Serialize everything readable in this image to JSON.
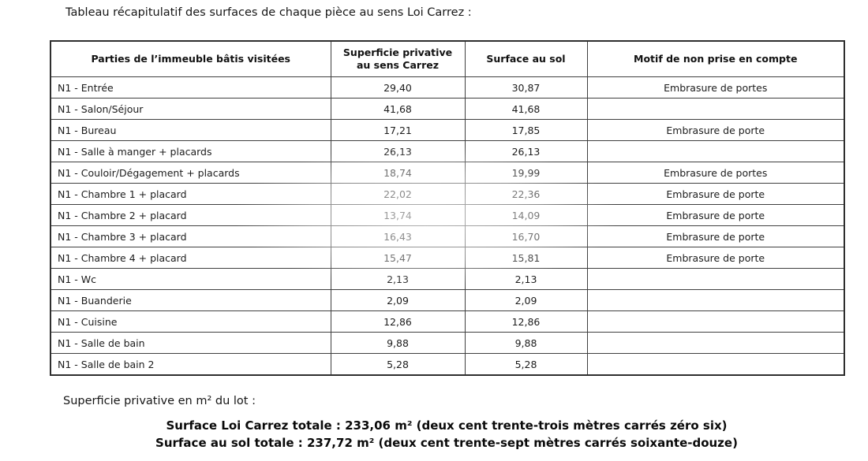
{
  "page": {
    "title": "Tableau récapitulatif des surfaces de chaque pièce au sens Loi Carrez :"
  },
  "table": {
    "headers": [
      "Parties de l’immeuble bâtis visitées",
      "Superficie privative au sens Carrez",
      "Surface au sol",
      "Motif de non prise en compte"
    ],
    "rows": [
      {
        "room": "N1 - Entrée",
        "carrez": "29,40",
        "floor": "30,87",
        "motif": "Embrasure de portes"
      },
      {
        "room": "N1 - Salon/Séjour",
        "carrez": "41,68",
        "floor": "41,68",
        "motif": ""
      },
      {
        "room": "N1 - Bureau",
        "carrez": "17,21",
        "floor": "17,85",
        "motif": "Embrasure de porte"
      },
      {
        "room": "N1 - Salle à manger + placards",
        "carrez": "26,13",
        "floor": "26,13",
        "motif": ""
      },
      {
        "room": "N1 - Couloir/Dégagement + placards",
        "carrez": "18,74",
        "floor": "19,99",
        "motif": "Embrasure de portes"
      },
      {
        "room": "N1 - Chambre 1 + placard",
        "carrez": "22,02",
        "floor": "22,36",
        "motif": "Embrasure de porte"
      },
      {
        "room": "N1 - Chambre 2 + placard",
        "carrez": "13,74",
        "floor": "14,09",
        "motif": "Embrasure de porte"
      },
      {
        "room": "N1 - Chambre 3 + placard",
        "carrez": "16,43",
        "floor": "16,70",
        "motif": "Embrasure de porte"
      },
      {
        "room": "N1 - Chambre 4 + placard",
        "carrez": "15,47",
        "floor": "15,81",
        "motif": "Embrasure de porte"
      },
      {
        "room": "N1 - Wc",
        "carrez": "2,13",
        "floor": "2,13",
        "motif": ""
      },
      {
        "room": "N1 - Buanderie",
        "carrez": "2,09",
        "floor": "2,09",
        "motif": ""
      },
      {
        "room": "N1 - Cuisine",
        "carrez": "12,86",
        "floor": "12,86",
        "motif": ""
      },
      {
        "room": "N1 - Salle de bain",
        "carrez": "9,88",
        "floor": "9,88",
        "motif": ""
      },
      {
        "room": "N1 - Salle de bain 2",
        "carrez": "5,28",
        "floor": "5,28",
        "motif": ""
      }
    ]
  },
  "footer": {
    "lot_label": "Superficie privative en m² du lot :",
    "total_carrez": "Surface Loi Carrez totale : 233,06 m² (deux cent trente-trois mètres carrés zéro six)",
    "total_floor": "Surface au sol totale : 237,72 m² (deux cent trente-sept mètres carrés soixante-douze)"
  }
}
